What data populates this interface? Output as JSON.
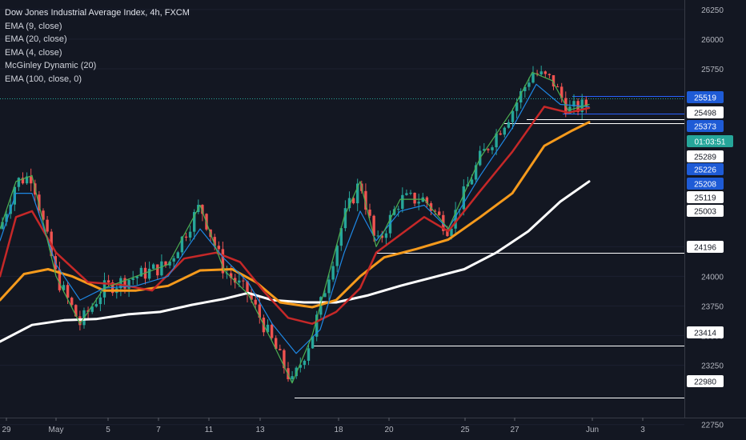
{
  "legend": {
    "title": "Dow Jones Industrial Average Index, 4h, FXCM",
    "lines": [
      "EMA (9, close)",
      "EMA (20, close)",
      "EMA (4, close)",
      "McGinley Dynamic (20)",
      "EMA (100, close, 0)"
    ]
  },
  "colors": {
    "background": "#131722",
    "up_candle": "#26a69a",
    "down_candle": "#ef5350",
    "ema9": "#1e88e5",
    "ema20": "#c62828",
    "ema4": "#4caf50",
    "mcginley": "#f59a1c",
    "ema100": "#ffffff",
    "price_badge_blue": "#1e5bd6",
    "countdown_badge": "#26a69a"
  },
  "chart_data": {
    "type": "candlestick",
    "title": "Dow Jones Industrial Average Index, 4h, FXCM",
    "ylim": [
      22620,
      26330
    ],
    "y_ticks": [
      26250,
      26000,
      25750,
      24250,
      24000,
      23750,
      23500,
      23250,
      22750
    ],
    "x_tick_labels": [
      "29",
      "May",
      "5",
      "7",
      "11",
      "13",
      "18",
      "20",
      "25",
      "27",
      "Jun",
      "3"
    ],
    "price_labels": [
      {
        "text": "25519",
        "style": "blue"
      },
      {
        "text": "25498",
        "style": "white"
      },
      {
        "text": "25373",
        "style": "blue"
      },
      {
        "text": "01:03:51",
        "style": "teal"
      },
      {
        "text": "25289",
        "style": "white"
      },
      {
        "text": "25226",
        "style": "blue"
      },
      {
        "text": "25208",
        "style": "blue"
      },
      {
        "text": "25119",
        "style": "white"
      },
      {
        "text": "25003",
        "style": "white"
      },
      {
        "text": "24196",
        "style": "white"
      },
      {
        "text": "23414",
        "style": "white"
      },
      {
        "text": "22980",
        "style": "white"
      }
    ],
    "horizontal_levels": [
      {
        "value": 25519,
        "color": "#2962ff",
        "x_start": 715
      },
      {
        "value": 25498,
        "color": "#26a69a",
        "dotted": true,
        "x_start": 0
      },
      {
        "value": 25373,
        "color": "#2962ff",
        "x_start": 703
      },
      {
        "value": 25325,
        "color": "#ffffff",
        "x_start": 658
      },
      {
        "value": 25289,
        "color": "#ffffff",
        "x_start": 630
      },
      {
        "value": 24196,
        "color": "#ffffff",
        "x_start": 470
      },
      {
        "value": 23414,
        "color": "#ffffff",
        "x_start": 392
      },
      {
        "value": 22980,
        "color": "#ffffff",
        "x_start": 368
      }
    ],
    "series": [
      {
        "name": "EMA (100, close, 0)",
        "color": "#ffffff",
        "width": 3,
        "points": [
          [
            0,
            23450
          ],
          [
            40,
            23590
          ],
          [
            80,
            23630
          ],
          [
            120,
            23640
          ],
          [
            160,
            23680
          ],
          [
            200,
            23700
          ],
          [
            240,
            23760
          ],
          [
            280,
            23810
          ],
          [
            310,
            23860
          ],
          [
            340,
            23800
          ],
          [
            380,
            23780
          ],
          [
            420,
            23780
          ],
          [
            460,
            23840
          ],
          [
            500,
            23920
          ],
          [
            540,
            23990
          ],
          [
            580,
            24060
          ],
          [
            620,
            24200
          ],
          [
            660,
            24380
          ],
          [
            700,
            24630
          ],
          [
            736,
            24800
          ]
        ]
      },
      {
        "name": "McGinley Dynamic (20)",
        "color": "#f59a1c",
        "width": 3,
        "points": [
          [
            0,
            23800
          ],
          [
            30,
            24020
          ],
          [
            60,
            24060
          ],
          [
            90,
            24000
          ],
          [
            130,
            23880
          ],
          [
            170,
            23880
          ],
          [
            210,
            23920
          ],
          [
            250,
            24050
          ],
          [
            290,
            24060
          ],
          [
            320,
            23950
          ],
          [
            350,
            23780
          ],
          [
            390,
            23740
          ],
          [
            420,
            23800
          ],
          [
            450,
            24000
          ],
          [
            480,
            24160
          ],
          [
            520,
            24230
          ],
          [
            560,
            24310
          ],
          [
            600,
            24500
          ],
          [
            640,
            24700
          ],
          [
            680,
            25100
          ],
          [
            715,
            25230
          ],
          [
            736,
            25300
          ]
        ]
      },
      {
        "name": "EMA (20, close)",
        "color": "#c62828",
        "width": 2.5,
        "points": [
          [
            0,
            24000
          ],
          [
            20,
            24500
          ],
          [
            40,
            24550
          ],
          [
            70,
            24200
          ],
          [
            110,
            23950
          ],
          [
            150,
            23930
          ],
          [
            190,
            23880
          ],
          [
            230,
            24150
          ],
          [
            270,
            24200
          ],
          [
            300,
            24120
          ],
          [
            330,
            23870
          ],
          [
            360,
            23650
          ],
          [
            390,
            23600
          ],
          [
            420,
            23700
          ],
          [
            450,
            23900
          ],
          [
            470,
            24200
          ],
          [
            500,
            24350
          ],
          [
            530,
            24500
          ],
          [
            560,
            24380
          ],
          [
            600,
            24720
          ],
          [
            640,
            25050
          ],
          [
            680,
            25430
          ],
          [
            710,
            25380
          ],
          [
            736,
            25420
          ]
        ]
      },
      {
        "name": "EMA (9, close)",
        "color": "#1e88e5",
        "width": 1.2,
        "points": [
          [
            0,
            24300
          ],
          [
            20,
            24700
          ],
          [
            40,
            24700
          ],
          [
            70,
            24100
          ],
          [
            100,
            23800
          ],
          [
            130,
            23900
          ],
          [
            170,
            23920
          ],
          [
            210,
            24000
          ],
          [
            250,
            24400
          ],
          [
            280,
            24150
          ],
          [
            310,
            23950
          ],
          [
            340,
            23600
          ],
          [
            370,
            23350
          ],
          [
            400,
            23550
          ],
          [
            430,
            24200
          ],
          [
            450,
            24550
          ],
          [
            470,
            24300
          ],
          [
            500,
            24550
          ],
          [
            530,
            24600
          ],
          [
            560,
            24400
          ],
          [
            600,
            24850
          ],
          [
            640,
            25250
          ],
          [
            670,
            25620
          ],
          [
            700,
            25450
          ],
          [
            736,
            25430
          ]
        ]
      },
      {
        "name": "EMA (4, close)",
        "color": "#4caf50",
        "width": 1.2,
        "points": [
          [
            0,
            24400
          ],
          [
            20,
            24800
          ],
          [
            40,
            24850
          ],
          [
            70,
            24000
          ],
          [
            100,
            23600
          ],
          [
            130,
            23900
          ],
          [
            170,
            24000
          ],
          [
            210,
            24100
          ],
          [
            250,
            24600
          ],
          [
            280,
            24050
          ],
          [
            310,
            23850
          ],
          [
            340,
            23450
          ],
          [
            365,
            23100
          ],
          [
            390,
            23500
          ],
          [
            430,
            24500
          ],
          [
            450,
            24800
          ],
          [
            470,
            24250
          ],
          [
            500,
            24650
          ],
          [
            530,
            24650
          ],
          [
            560,
            24400
          ],
          [
            600,
            25000
          ],
          [
            640,
            25400
          ],
          [
            665,
            25720
          ],
          [
            690,
            25650
          ],
          [
            710,
            25400
          ],
          [
            736,
            25450
          ]
        ]
      }
    ]
  }
}
